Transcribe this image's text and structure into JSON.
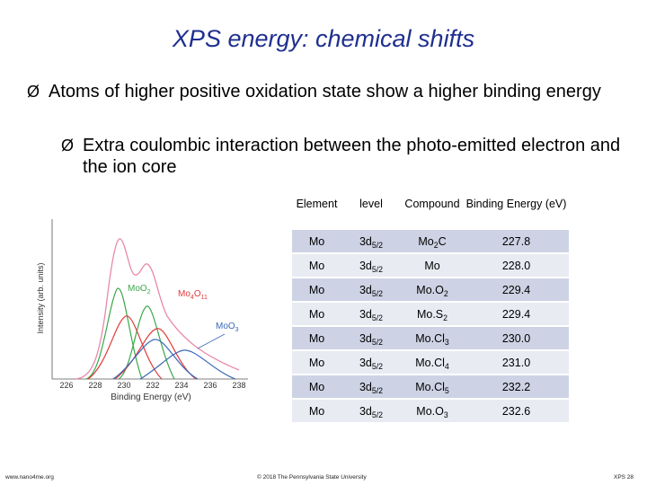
{
  "slide": {
    "title": "XPS energy: chemical shifts",
    "bullet1": "Atoms of higher positive oxidation state show a higher binding energy",
    "bullet2": "Extra coulombic interaction between the photo-emitted electron and the ion core",
    "arrow_glyph": "Ø"
  },
  "plot": {
    "ylabel": "Intensity (arb. units)",
    "xlabel": "Binding Energy (eV)",
    "ticks": [
      "226",
      "228",
      "230",
      "232",
      "234",
      "236",
      "238"
    ],
    "labels": {
      "mo2": "MoO",
      "mo2_sub": "2",
      "mo4_a": "Mo",
      "mo4_a_sub": "4",
      "mo4_b": "O",
      "mo4_b_sub": "11",
      "mo3": "MoO",
      "mo3_sub": "3"
    },
    "colors": {
      "envelope": "#e88aa8",
      "mo2": "#3aa84a",
      "mo4o11": "#e23b3b",
      "moo3": "#3a68b8",
      "axis": "#555555"
    }
  },
  "table": {
    "headers": {
      "element": "Element",
      "level": "level",
      "compound": "Compound",
      "energy": "Binding Energy (eV)"
    },
    "rows": [
      {
        "element": "Mo",
        "level": "3d",
        "level_sub": "5/2",
        "cmp": "Mo",
        "cmp_sub": "2",
        "cmp_tail": "C",
        "energy": "227.8"
      },
      {
        "element": "Mo",
        "level": "3d",
        "level_sub": "5/2",
        "cmp": "Mo",
        "cmp_sub": "",
        "cmp_tail": "",
        "energy": "228.0"
      },
      {
        "element": "Mo",
        "level": "3d",
        "level_sub": "5/2",
        "cmp": "Mo.O",
        "cmp_sub": "2",
        "cmp_tail": "",
        "energy": "229.4"
      },
      {
        "element": "Mo",
        "level": "3d",
        "level_sub": "5/2",
        "cmp": "Mo.S",
        "cmp_sub": "2",
        "cmp_tail": "",
        "energy": "229.4"
      },
      {
        "element": "Mo",
        "level": "3d",
        "level_sub": "5/2",
        "cmp": "Mo.Cl",
        "cmp_sub": "3",
        "cmp_tail": "",
        "energy": "230.0"
      },
      {
        "element": "Mo",
        "level": "3d",
        "level_sub": "5/2",
        "cmp": "Mo.Cl",
        "cmp_sub": "4",
        "cmp_tail": "",
        "energy": "231.0"
      },
      {
        "element": "Mo",
        "level": "3d",
        "level_sub": "5/2",
        "cmp": "Mo.Cl",
        "cmp_sub": "5",
        "cmp_tail": "",
        "energy": "232.2"
      },
      {
        "element": "Mo",
        "level": "3d",
        "level_sub": "5/2",
        "cmp": "Mo.O",
        "cmp_sub": "3",
        "cmp_tail": "",
        "energy": "232.6"
      }
    ]
  },
  "footer": {
    "left": "www.nano4me.org",
    "center": "© 2018 The Pennsylvania State University",
    "right": "XPS 28"
  }
}
